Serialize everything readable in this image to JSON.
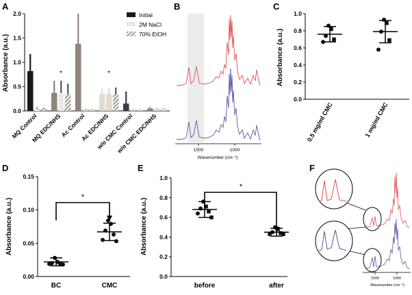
{
  "colors": {
    "black": "#1a1a1a",
    "dark_gray": "#3c3c3c",
    "taupe": "#8e857c",
    "light_beige": "#e2dbd0",
    "red_spectrum": "#e05050",
    "blue_spectrum": "#5a55a8",
    "highlight": "#ececec",
    "marker": "#111111"
  },
  "panels": {
    "A": {
      "label": "A"
    },
    "B": {
      "label": "B"
    },
    "C": {
      "label": "C"
    },
    "D": {
      "label": "D"
    },
    "E": {
      "label": "E"
    },
    "F": {
      "label": "F"
    }
  },
  "chart_data": [
    {
      "id": "A",
      "type": "bar",
      "ylabel": "Absorbance (a.u.)",
      "ylim": [
        0,
        2.0
      ],
      "yticks": [
        "0.0",
        "0.5",
        "1.0",
        "1.5",
        "2.0"
      ],
      "ytick_values": [
        0,
        0.5,
        1.0,
        1.5,
        2.0
      ],
      "legend": [
        "Initial",
        "2M NaCl",
        "70% EtOH"
      ],
      "legend_position": "top-right",
      "categories": [
        "MQ Control",
        "MQ EDC/NHS",
        "Ac Control",
        "Ac EDC/NHS",
        "w/o CMC Control",
        "w/o CMC EDC/NHS"
      ],
      "series": [
        {
          "name": "Initial",
          "values": [
            0.82,
            0.37,
            1.38,
            0.35,
            0.15,
            0.05
          ],
          "errors": [
            0.35,
            0.25,
            0.62,
            0.12,
            0.25,
            0.03
          ]
        },
        {
          "name": "2M NaCl",
          "values": [
            0.05,
            0.37,
            0.04,
            0.35,
            0.03,
            0.05
          ],
          "errors": [
            0.02,
            0.25,
            0.02,
            0.12,
            0.02,
            0.02
          ]
        },
        {
          "name": "70% EtOH",
          "values": [
            0.04,
            0.34,
            0.04,
            0.33,
            0.03,
            0.05
          ],
          "errors": [
            0.02,
            0.22,
            0.02,
            0.15,
            0.02,
            0.02
          ]
        }
      ],
      "annotations": [
        {
          "text": "*",
          "category": "MQ EDC/NHS"
        },
        {
          "text": "*",
          "category": "Ac EDC/NHS"
        }
      ]
    },
    {
      "id": "B",
      "type": "line",
      "xlabel": "Wavenumber (cm⁻¹)",
      "xticks": [
        "1500",
        "1000"
      ],
      "xtick_values": [
        1500,
        1000
      ],
      "xlim": [
        1800,
        700
      ],
      "highlight_range": [
        1800,
        1450
      ],
      "series": [
        {
          "name": "top spectrum",
          "color": "red"
        },
        {
          "name": "bottom spectrum",
          "color": "blue"
        }
      ]
    },
    {
      "id": "C",
      "type": "scatter",
      "ylabel": "Absorbance (a.u.)",
      "ylim": [
        0,
        1.0
      ],
      "yticks": [
        "0.0",
        "0.2",
        "0.4",
        "0.6",
        "0.8",
        "1.0"
      ],
      "ytick_values": [
        0,
        0.2,
        0.4,
        0.6,
        0.8,
        1.0
      ],
      "categories": [
        "0.5 mg/ml CMC",
        "1 mg/ml CMC"
      ],
      "series": [
        {
          "name": "0.5 mg/ml CMC",
          "points": [
            0.86,
            0.82,
            0.74,
            0.7,
            0.67
          ],
          "mean": 0.76,
          "sd": 0.09
        },
        {
          "name": "1 mg/ml CMC",
          "points": [
            0.93,
            0.89,
            0.79,
            0.69,
            0.58
          ],
          "mean": 0.79,
          "sd": 0.13
        }
      ]
    },
    {
      "id": "D",
      "type": "scatter",
      "ylabel": "Absorbance (a.u.)",
      "ylim": [
        0,
        0.15
      ],
      "yticks": [
        "0.00",
        "0.05",
        "0.10",
        "0.15"
      ],
      "ytick_values": [
        0,
        0.05,
        0.1,
        0.15
      ],
      "categories": [
        "BC",
        "CMC"
      ],
      "series": [
        {
          "name": "BC",
          "points": [
            0.028,
            0.022,
            0.02,
            0.019,
            0.019,
            0.018
          ],
          "mean": 0.022,
          "sd": 0.006
        },
        {
          "name": "CMC",
          "points": [
            0.084,
            0.079,
            0.069,
            0.063,
            0.055,
            0.053
          ],
          "mean": 0.067,
          "sd": 0.013
        }
      ],
      "annotations": [
        {
          "text": "*"
        }
      ]
    },
    {
      "id": "E",
      "type": "scatter",
      "ylabel": "Absorbance (a.u.)",
      "ylim": [
        0,
        1.0
      ],
      "yticks": [
        "0.0",
        "0.2",
        "0.4",
        "0.6",
        "0.8",
        "1.0"
      ],
      "ytick_values": [
        0,
        0.2,
        0.4,
        0.6,
        0.8,
        1.0
      ],
      "categories": [
        "before",
        "after"
      ],
      "series": [
        {
          "name": "before",
          "points": [
            0.76,
            0.71,
            0.69,
            0.66,
            0.64,
            0.6
          ],
          "mean": 0.68,
          "sd": 0.08
        },
        {
          "name": "after",
          "points": [
            0.5,
            0.48,
            0.45,
            0.44,
            0.43,
            0.43
          ],
          "mean": 0.45,
          "sd": 0.04
        }
      ],
      "annotations": [
        {
          "text": "*"
        }
      ]
    },
    {
      "id": "F",
      "type": "line",
      "xlabel": "Wavenumber (cm⁻¹)",
      "xticks": [
        "1500",
        "1000"
      ],
      "xtick_values": [
        1500,
        1000
      ],
      "xlim": [
        1800,
        700
      ],
      "series": [
        {
          "name": "top spectrum",
          "color": "red"
        },
        {
          "name": "bottom spectrum",
          "color": "blue"
        }
      ]
    }
  ]
}
